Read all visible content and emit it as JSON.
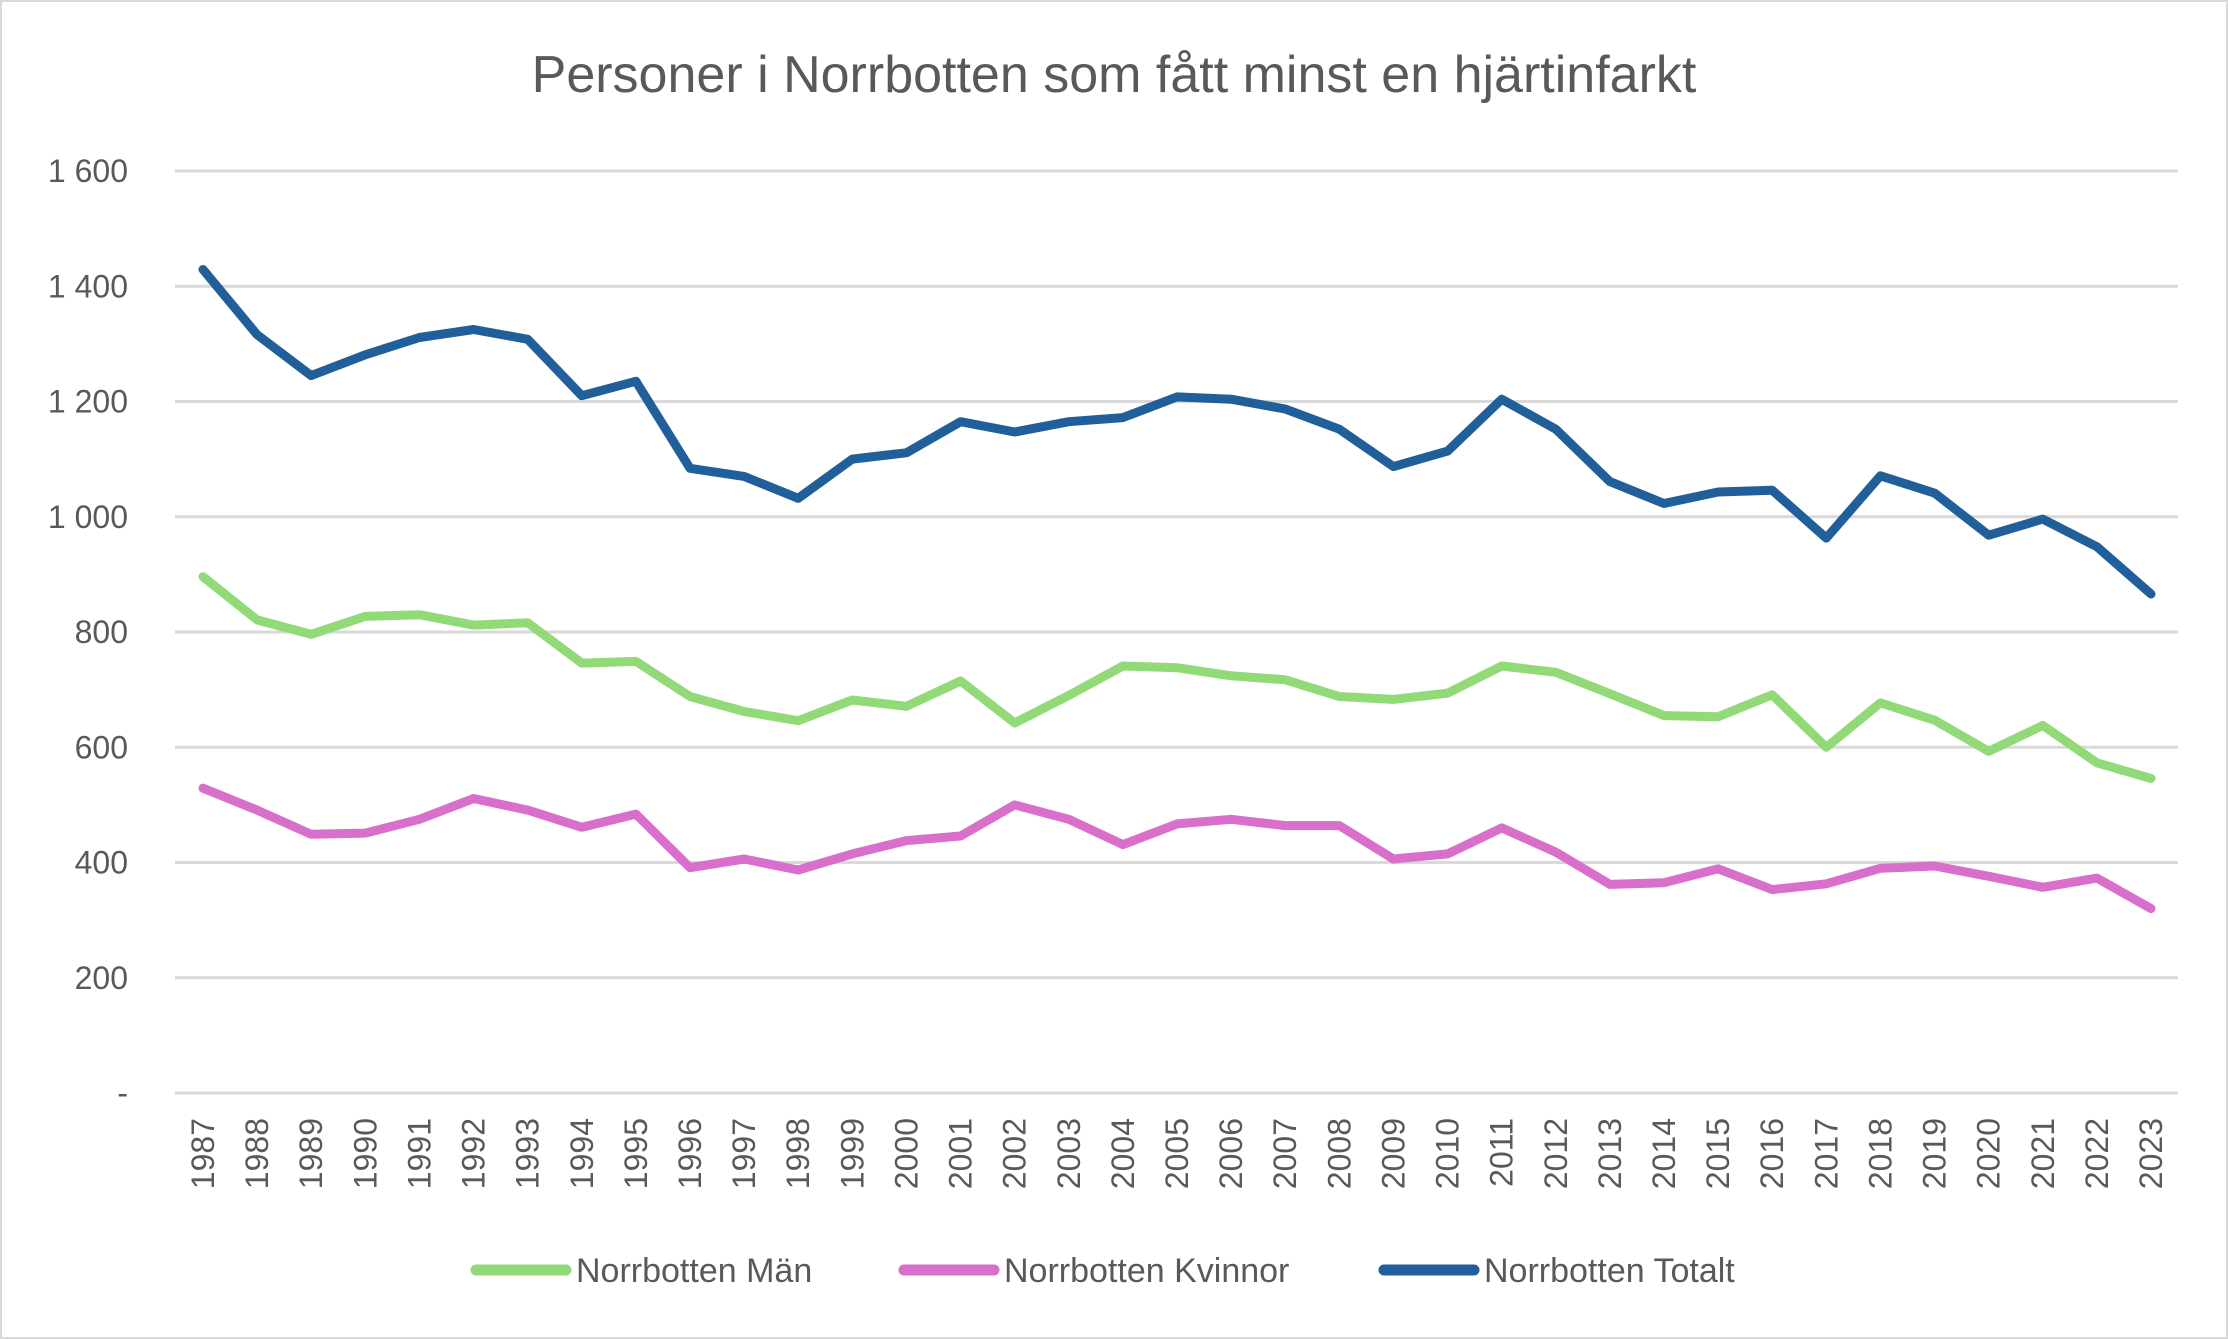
{
  "chart_data": {
    "type": "line",
    "title": "Personer i Norrbotten som fått minst en hjärtinfarkt",
    "xlabel": "",
    "ylabel": "",
    "ylim": [
      0,
      1600
    ],
    "yticks": [
      0,
      200,
      400,
      600,
      800,
      1000,
      1200,
      1400,
      1600
    ],
    "ytick_labels": [
      "-",
      "200",
      "400",
      "600",
      "800",
      "1 000",
      "1 200",
      "1 400",
      "1 600"
    ],
    "grid": true,
    "legend_position": "bottom",
    "categories": [
      "1987",
      "1988",
      "1989",
      "1990",
      "1991",
      "1992",
      "1993",
      "1994",
      "1995",
      "1996",
      "1997",
      "1998",
      "1999",
      "2000",
      "2001",
      "2002",
      "2003",
      "2004",
      "2005",
      "2006",
      "2007",
      "2008",
      "2009",
      "2010",
      "2011",
      "2012",
      "2013",
      "2014",
      "2015",
      "2016",
      "2017",
      "2018",
      "2019",
      "2020",
      "2021",
      "2022",
      "2023"
    ],
    "series": [
      {
        "name": "Norrbotten Män",
        "color": "#92d977",
        "values": [
          896,
          821,
          796,
          827,
          830,
          812,
          816,
          746,
          749,
          688,
          662,
          646,
          682,
          671,
          715,
          642,
          690,
          741,
          738,
          724,
          717,
          688,
          683,
          694,
          741,
          730,
          693,
          655,
          653,
          691,
          600,
          677,
          647,
          593,
          638,
          573,
          546
        ]
      },
      {
        "name": "Norrbotten Kvinnor",
        "color": "#d76fcb",
        "values": [
          529,
          491,
          449,
          451,
          475,
          511,
          491,
          461,
          484,
          391,
          406,
          387,
          415,
          438,
          446,
          500,
          475,
          431,
          467,
          475,
          464,
          464,
          406,
          415,
          460,
          418,
          362,
          365,
          389,
          353,
          363,
          390,
          394,
          376,
          357,
          373,
          320
        ]
      },
      {
        "name": "Norrbotten Totalt",
        "color": "#215f9a",
        "values": [
          1429,
          1316,
          1245,
          1281,
          1311,
          1325,
          1308,
          1210,
          1235,
          1084,
          1070,
          1032,
          1100,
          1111,
          1165,
          1147,
          1165,
          1172,
          1208,
          1204,
          1187,
          1152,
          1087,
          1114,
          1204,
          1152,
          1061,
          1023,
          1043,
          1046,
          963,
          1071,
          1041,
          968,
          996,
          948,
          866
        ]
      }
    ]
  }
}
